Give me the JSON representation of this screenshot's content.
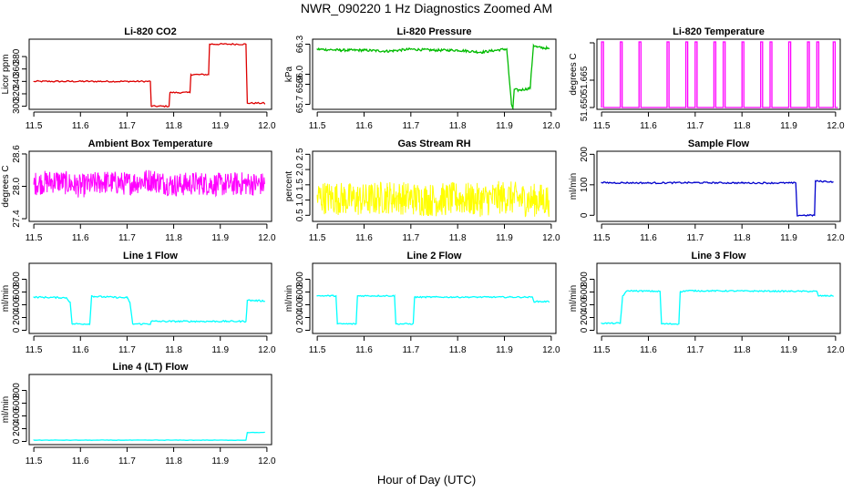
{
  "figure": {
    "title": "NWR_090220  1 Hz Diagnostics Zoomed AM",
    "xlabel": "Hour of Day (UTC)"
  },
  "chart_data": [
    {
      "type": "line",
      "title": "Li-820 CO2",
      "ylabel": "Licor ppm",
      "color": "#dd0000",
      "xlim": [
        11.49,
        12.01
      ],
      "ylim": [
        295,
        408
      ],
      "xticks": [
        "11.5",
        "11.6",
        "11.7",
        "11.8",
        "11.9",
        "12.0"
      ],
      "yticks": [
        "300",
        "320",
        "340",
        "360",
        "380"
      ],
      "series": [
        {
          "name": "CO2",
          "x": [
            11.5,
            11.75,
            11.752,
            11.79,
            11.792,
            11.835,
            11.837,
            11.875,
            11.877,
            11.955,
            11.958,
            11.995
          ],
          "y": [
            340,
            340,
            300,
            300,
            322,
            322,
            351,
            351,
            400,
            400,
            305,
            305
          ]
        }
      ]
    },
    {
      "type": "line",
      "title": "Li-820 Pressure",
      "ylabel": "kPa",
      "color": "#00bb00",
      "xlim": [
        11.49,
        12.01
      ],
      "ylim": [
        65.65,
        66.35
      ],
      "xticks": [
        "11.5",
        "11.6",
        "11.7",
        "11.8",
        "11.9",
        "12.0"
      ],
      "yticks": [
        "65.7",
        "65.9",
        "66.0",
        "66.3"
      ],
      "series": [
        {
          "name": "Pressure",
          "x": [
            11.5,
            11.55,
            11.6,
            11.65,
            11.7,
            11.75,
            11.8,
            11.85,
            11.9,
            11.905,
            11.915,
            11.918,
            11.921,
            11.93,
            11.955,
            11.958,
            11.962,
            11.97,
            11.99,
            11.995
          ],
          "y": [
            66.25,
            66.24,
            66.24,
            66.23,
            66.25,
            66.24,
            66.24,
            66.22,
            66.25,
            66.25,
            65.7,
            65.66,
            65.85,
            65.84,
            65.86,
            66.05,
            66.29,
            66.27,
            66.26,
            66.25
          ]
        }
      ]
    },
    {
      "type": "line",
      "title": "Li-820 Temperature",
      "ylabel": "degrees C",
      "color": "#ff00ff",
      "xlim": [
        11.49,
        12.01
      ],
      "ylim": [
        51.649,
        51.6875
      ],
      "xticks": [
        "11.5",
        "11.6",
        "11.7",
        "11.8",
        "11.9",
        "12.0"
      ],
      "yticks": [
        "51.650",
        "51.665",
        ""
      ],
      "series": [
        {
          "name": "Temperature",
          "x": [
            11.5,
            11.52,
            11.54,
            11.56,
            11.58,
            11.62,
            11.64,
            11.66,
            11.68,
            11.7,
            11.72,
            11.74,
            11.76,
            11.78,
            11.8,
            11.82,
            11.84,
            11.86,
            11.88,
            11.9,
            11.92,
            11.94,
            11.96,
            11.98,
            11.995
          ],
          "y": [
            51.686,
            51.65,
            51.686,
            51.65,
            51.686,
            51.65,
            51.686,
            51.65,
            51.686,
            51.686,
            51.65,
            51.686,
            51.686,
            51.65,
            51.686,
            51.65,
            51.686,
            51.686,
            51.65,
            51.686,
            51.65,
            51.686,
            51.686,
            51.65,
            51.686
          ]
        }
      ]
    },
    {
      "type": "line",
      "title": "Ambient Box Temperature",
      "ylabel": "degrees C",
      "color": "#ff00ff",
      "xlim": [
        11.49,
        12.01
      ],
      "ylim": [
        27.35,
        28.65
      ],
      "xticks": [
        "11.5",
        "11.6",
        "11.7",
        "11.8",
        "11.9",
        "12.0"
      ],
      "yticks": [
        "27.4",
        "28.0",
        "28.6"
      ],
      "series": [
        {
          "name": "Box Temp",
          "x": [
            11.5,
            11.55,
            11.6,
            11.65,
            11.7,
            11.75,
            11.8,
            11.85,
            11.9,
            11.95,
            11.995
          ],
          "y": [
            28.05,
            28.1,
            28.0,
            28.08,
            28.05,
            28.12,
            28.02,
            28.06,
            28.03,
            28.05,
            28.04
          ]
        }
      ]
    },
    {
      "type": "line",
      "title": "Gas Stream RH",
      "ylabel": "percent",
      "color": "#ffff00",
      "xlim": [
        11.49,
        12.01
      ],
      "ylim": [
        0.3,
        2.6
      ],
      "xticks": [
        "11.5",
        "11.6",
        "11.7",
        "11.8",
        "11.9",
        "12.0"
      ],
      "yticks": [
        "0.5",
        "1.0",
        "1.5",
        "2.0",
        "2.5"
      ],
      "series": [
        {
          "name": "RH",
          "x": [
            11.5,
            11.55,
            11.6,
            11.65,
            11.7,
            11.75,
            11.8,
            11.85,
            11.9,
            11.95,
            11.995
          ],
          "y": [
            1.1,
            1.05,
            1.0,
            1.1,
            1.05,
            1.0,
            1.05,
            1.0,
            1.1,
            1.0,
            1.0
          ]
        }
      ]
    },
    {
      "type": "line",
      "title": "Sample Flow",
      "ylabel": "ml/min",
      "color": "#0000cc",
      "xlim": [
        11.49,
        12.01
      ],
      "ylim": [
        -20,
        210
      ],
      "xticks": [
        "11.5",
        "11.6",
        "11.7",
        "11.8",
        "11.9",
        "12.0"
      ],
      "yticks": [
        "0",
        "100",
        "200"
      ],
      "series": [
        {
          "name": "Sample",
          "x": [
            11.5,
            11.6,
            11.7,
            11.8,
            11.9,
            11.915,
            11.918,
            11.95,
            11.955,
            11.957,
            11.995
          ],
          "y": [
            107,
            106,
            107,
            106,
            106,
            106,
            0,
            0,
            0,
            112,
            110
          ]
        }
      ]
    },
    {
      "type": "line",
      "title": "Line 1 Flow",
      "ylabel": "ml/min",
      "color": "#00ffff",
      "xlim": [
        11.49,
        12.01
      ],
      "ylim": [
        -50,
        1050
      ],
      "xticks": [
        "11.5",
        "11.6",
        "11.7",
        "11.8",
        "11.9",
        "12.0"
      ],
      "yticks": [
        "0",
        "200",
        "400",
        "600",
        "800"
      ],
      "series": [
        {
          "name": "Line 1",
          "x": [
            11.5,
            11.57,
            11.578,
            11.582,
            11.62,
            11.624,
            11.63,
            11.7,
            11.706,
            11.712,
            11.75,
            11.752,
            11.955,
            11.958,
            11.995
          ],
          "y": [
            520,
            510,
            440,
            100,
            100,
            540,
            530,
            510,
            440,
            100,
            100,
            140,
            140,
            470,
            460
          ]
        }
      ]
    },
    {
      "type": "line",
      "title": "Line 2 Flow",
      "ylabel": "ml/min",
      "color": "#00ffff",
      "xlim": [
        11.49,
        12.01
      ],
      "ylim": [
        -50,
        1050
      ],
      "xticks": [
        "11.5",
        "11.6",
        "11.7",
        "11.8",
        "11.9",
        "12.0"
      ],
      "yticks": [
        "0",
        "200",
        "400",
        "600",
        "800"
      ],
      "series": [
        {
          "name": "Line 2",
          "x": [
            11.5,
            11.54,
            11.543,
            11.583,
            11.586,
            11.665,
            11.668,
            11.705,
            11.708,
            11.96,
            11.963,
            11.995
          ],
          "y": [
            540,
            540,
            100,
            100,
            540,
            540,
            100,
            100,
            520,
            520,
            450,
            450
          ]
        }
      ]
    },
    {
      "type": "line",
      "title": "Line 3 Flow",
      "ylabel": "ml/min",
      "color": "#00ffff",
      "xlim": [
        11.49,
        12.01
      ],
      "ylim": [
        -50,
        1050
      ],
      "xticks": [
        "11.5",
        "11.6",
        "11.7",
        "11.8",
        "11.9",
        "12.0"
      ],
      "yticks": [
        "0",
        "200",
        "400",
        "600",
        "800"
      ],
      "series": [
        {
          "name": "Line 3",
          "x": [
            11.5,
            11.54,
            11.545,
            11.555,
            11.625,
            11.628,
            11.665,
            11.668,
            11.68,
            11.96,
            11.963,
            11.995
          ],
          "y": [
            110,
            110,
            540,
            620,
            610,
            100,
            100,
            600,
            620,
            610,
            540,
            540
          ]
        }
      ]
    },
    {
      "type": "line",
      "title": "Line 4 (LT) Flow",
      "ylabel": "ml/min",
      "color": "#00ffff",
      "xlim": [
        11.49,
        12.01
      ],
      "ylim": [
        -50,
        1050
      ],
      "xticks": [
        "11.5",
        "11.6",
        "11.7",
        "11.8",
        "11.9",
        "12.0"
      ],
      "yticks": [
        "0",
        "200",
        "400",
        "600",
        "800"
      ],
      "series": [
        {
          "name": "Line 4",
          "x": [
            11.5,
            11.955,
            11.958,
            11.995
          ],
          "y": [
            20,
            20,
            140,
            140
          ]
        }
      ]
    }
  ]
}
